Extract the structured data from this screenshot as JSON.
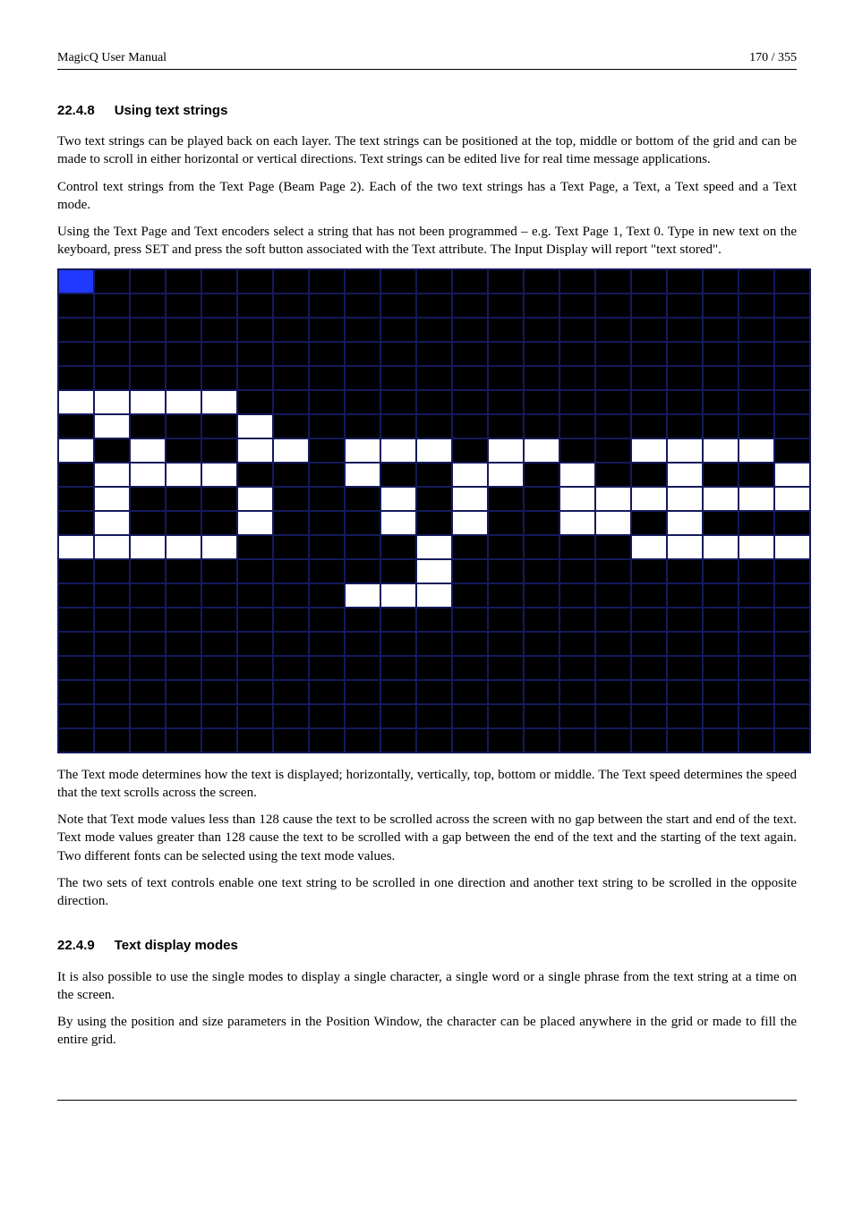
{
  "header": {
    "left": "MagicQ User Manual",
    "right": "170 / 355"
  },
  "sec1": {
    "number": "22.4.8",
    "title": "Using text strings",
    "p1": "Two text strings can be played back on each layer. The text strings can be positioned at the top, middle or bottom of the grid and can be made to scroll in either horizontal or vertical directions. Text strings can be edited live for real time message applications.",
    "p2": "Control text strings from the Text Page (Beam Page 2). Each of the two text strings has a Text Page, a Text, a Text speed and a Text mode.",
    "p3": "Using the Text Page and Text encoders select a string that has not been programmed – e.g. Text Page 1, Text 0. Type in new text on the keyboard, press SET and press the soft button associated with the Text attribute. The Input Display will report \"text stored\"."
  },
  "grid": {
    "cols": 21,
    "rows": 20,
    "cursor": [
      0,
      0
    ],
    "pattern": [
      "111111111111111111111",
      "111111111111111111111",
      "111111111111111111111",
      "111111111111111111111",
      "111111111111111111111",
      "000001111111111111111",
      "101110111111111111111",
      "010110010001001100001",
      "100001110110010110110",
      "101110111010110000000",
      "101110111010110010111",
      "000001111101111100000",
      "111111111101111111111",
      "111111110001111111111",
      "111111111111111111111",
      "111111111111111111111",
      "111111111111111111111",
      "111111111111111111111",
      "111111111111111111111",
      "111111111111111111111"
    ]
  },
  "after": {
    "p1": "The Text mode determines how the text is displayed; horizontally, vertically, top, bottom or middle. The Text speed determines the speed that the text scrolls across the screen.",
    "p2": "Note that Text mode values less than 128 cause the text to be scrolled across the screen with no gap between the start and end of the text. Text mode values greater than 128 cause the text to be scrolled with a gap between the end of the text and the starting of the text again. Two different fonts can be selected using the text mode values.",
    "p3": "The two sets of text controls enable one text string to be scrolled in one direction and another text string to be scrolled in the opposite direction."
  },
  "sec2": {
    "number": "22.4.9",
    "title": "Text display modes",
    "p1": "It is also possible to use the single modes to display a single character, a single word or a single phrase from the text string at a time on the screen.",
    "p2": "By using the position and size parameters in the Position Window, the character can be placed anywhere in the grid or made to fill the entire grid."
  }
}
